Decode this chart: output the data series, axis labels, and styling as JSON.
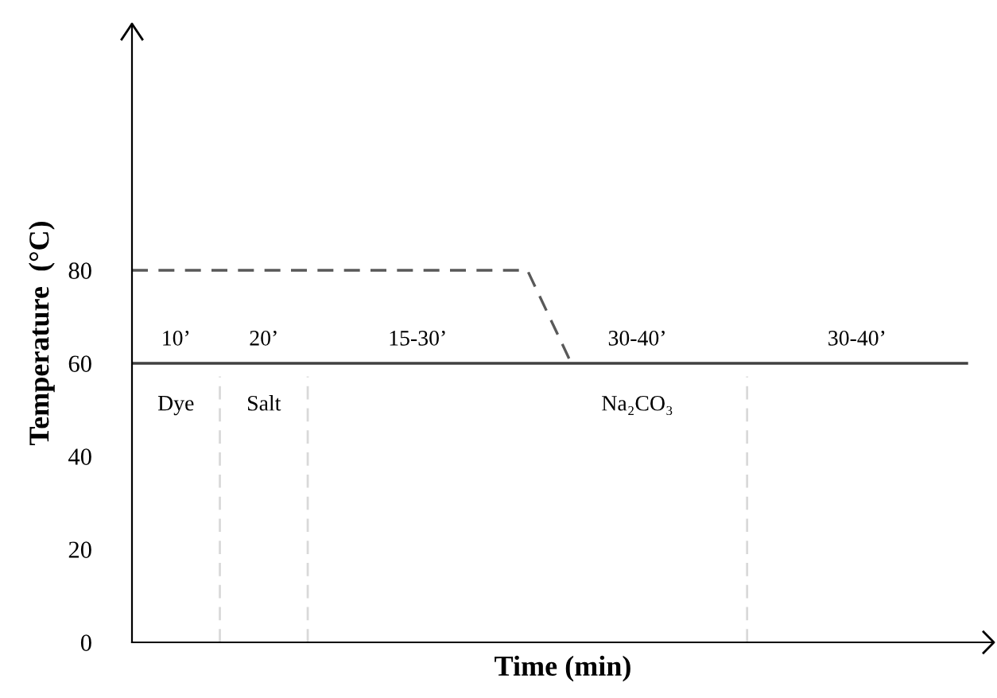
{
  "chart_data": {
    "type": "line",
    "xlabel": "Time (min)",
    "ylabel": "Temperature  (°C)",
    "categories": [
      null,
      null,
      null,
      null,
      null,
      null,
      null,
      null,
      null,
      null,
      null,
      null,
      null,
      null,
      null,
      null,
      null,
      null,
      null,
      null
    ],
    "ylim": [
      0,
      133
    ],
    "yticks": [
      0,
      20,
      40,
      60,
      80
    ],
    "tick_labels": "y",
    "grid": false,
    "legend": false,
    "series": [
      {
        "values": [
          80,
          80,
          80,
          80,
          80,
          80,
          80,
          80,
          80,
          80,
          60,
          null,
          null,
          null,
          null,
          null,
          null,
          null,
          null,
          null
        ],
        "color": "#595959",
        "line_style": "dashed"
      },
      {
        "values": [
          60,
          60,
          60,
          60,
          60,
          60,
          60,
          60,
          60,
          60,
          60,
          60,
          60,
          60,
          60,
          60,
          60,
          60,
          60,
          60
        ],
        "color": "#404040",
        "line_style": "solid"
      }
    ],
    "annotations": [
      "10’",
      "20’",
      "15-30’",
      "30-40’",
      "30-40’",
      "Dye",
      "Salt",
      "Na₂CO₃"
    ]
  }
}
